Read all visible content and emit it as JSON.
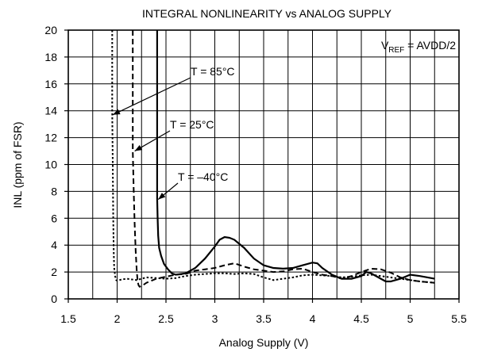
{
  "chart_data": {
    "type": "line",
    "title": "INTEGRAL NONLINEARITY vs ANALOG SUPPLY",
    "xlabel": "Analog Supply (V)",
    "ylabel": "INL (ppm of FSR)",
    "xlim": [
      1.5,
      5.5
    ],
    "ylim": [
      0,
      20
    ],
    "x_ticks": [
      "1.5",
      "2",
      "2.5",
      "3",
      "3.5",
      "4",
      "4.5",
      "5",
      "5.5"
    ],
    "y_ticks": [
      "0",
      "2",
      "4",
      "6",
      "8",
      "10",
      "12",
      "14",
      "16",
      "18",
      "20"
    ],
    "grid": true,
    "corner_note": {
      "main": "V",
      "sub": "REF",
      "rest": " = AVDD/2"
    },
    "series": [
      {
        "name": "T = 85°C",
        "style": "dotted",
        "x": [
          1.95,
          1.95,
          1.955,
          1.96,
          1.965,
          1.97,
          1.98,
          1.99,
          2.0,
          2.05,
          2.1,
          2.2,
          2.3,
          2.4,
          2.5,
          2.6,
          2.7,
          2.8,
          2.9,
          3.0,
          3.1,
          3.2,
          3.3,
          3.4,
          3.5,
          3.6,
          3.7,
          3.8,
          3.9,
          4.0,
          4.1,
          4.2,
          4.3,
          4.4,
          4.5,
          4.6,
          4.7,
          4.8,
          4.9,
          5.0,
          5.1,
          5.25
        ],
        "y": [
          20,
          14,
          10,
          6,
          3.5,
          2.3,
          1.7,
          1.4,
          1.35,
          1.45,
          1.5,
          1.4,
          1.6,
          1.55,
          1.5,
          1.55,
          1.7,
          1.8,
          1.85,
          1.9,
          1.9,
          1.85,
          1.9,
          1.85,
          1.6,
          1.4,
          1.5,
          1.6,
          1.75,
          1.8,
          1.75,
          1.7,
          1.6,
          1.65,
          1.75,
          1.8,
          1.7,
          1.6,
          1.5,
          1.4,
          1.3,
          1.2
        ]
      },
      {
        "name": "T = 25°C",
        "style": "dashed",
        "x": [
          2.16,
          2.16,
          2.17,
          2.18,
          2.19,
          2.2,
          2.21,
          2.22,
          2.23,
          2.26,
          2.3,
          2.4,
          2.5,
          2.6,
          2.7,
          2.8,
          2.9,
          3.0,
          3.1,
          3.2,
          3.3,
          3.4,
          3.5,
          3.6,
          3.7,
          3.8,
          3.9,
          4.0,
          4.1,
          4.2,
          4.3,
          4.4,
          4.5,
          4.6,
          4.7,
          4.8,
          4.9,
          5.0,
          5.1,
          5.25
        ],
        "y": [
          20,
          11,
          8,
          5.5,
          3.5,
          2.2,
          1.3,
          1.0,
          0.9,
          1.0,
          1.2,
          1.5,
          1.65,
          1.8,
          1.85,
          2.1,
          2.2,
          2.3,
          2.5,
          2.65,
          2.4,
          2.2,
          2.1,
          2.0,
          2.05,
          2.2,
          2.25,
          2.0,
          1.8,
          1.7,
          1.5,
          1.7,
          2.0,
          2.25,
          2.2,
          1.95,
          1.6,
          1.4,
          1.3,
          1.2
        ]
      },
      {
        "name": "T = –40°C",
        "style": "solid",
        "x": [
          2.41,
          2.41,
          2.415,
          2.42,
          2.43,
          2.45,
          2.48,
          2.52,
          2.56,
          2.6,
          2.7,
          2.8,
          2.9,
          3.0,
          3.05,
          3.1,
          3.15,
          3.2,
          3.3,
          3.4,
          3.5,
          3.6,
          3.7,
          3.8,
          3.9,
          4.0,
          4.05,
          4.1,
          4.2,
          4.3,
          4.4,
          4.5,
          4.55,
          4.6,
          4.7,
          4.75,
          4.8,
          4.9,
          5.0,
          5.1,
          5.25
        ],
        "y": [
          20,
          7.5,
          6,
          4.7,
          3.8,
          3.2,
          2.6,
          2.2,
          1.9,
          1.8,
          1.9,
          2.3,
          3.0,
          3.9,
          4.4,
          4.6,
          4.55,
          4.4,
          3.8,
          3.0,
          2.5,
          2.3,
          2.25,
          2.3,
          2.5,
          2.7,
          2.65,
          2.3,
          1.8,
          1.5,
          1.5,
          1.7,
          2.0,
          1.9,
          1.5,
          1.3,
          1.3,
          1.5,
          1.8,
          1.7,
          1.5
        ]
      }
    ],
    "annotations": [
      {
        "text": "T = 85°C",
        "target": [
          1.955,
          13.7
        ]
      },
      {
        "text": "T = 25°C",
        "target": [
          2.18,
          11.0
        ]
      },
      {
        "text": "T = –40°C",
        "target": [
          2.42,
          7.4
        ]
      }
    ]
  }
}
